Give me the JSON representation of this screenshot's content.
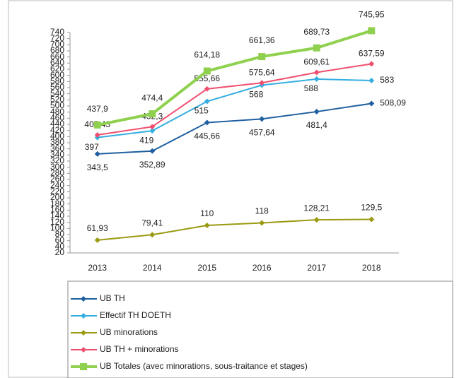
{
  "chart_data": {
    "type": "line",
    "categories": [
      "2013",
      "2014",
      "2015",
      "2016",
      "2017",
      "2018"
    ],
    "ylim": [
      20,
      740
    ],
    "yticks": [
      20,
      40,
      60,
      80,
      100,
      120,
      140,
      160,
      180,
      200,
      220,
      240,
      260,
      280,
      300,
      320,
      340,
      360,
      380,
      400,
      420,
      440,
      460,
      480,
      500,
      520,
      540,
      560,
      580,
      600,
      620,
      640,
      660,
      680,
      700,
      720,
      740
    ],
    "grid": false,
    "legend": "bottom",
    "series": [
      {
        "name": "UB TH",
        "color": "#1f5fa0",
        "marker": "diamond",
        "values": [
          343.5,
          352.89,
          445.66,
          457.64,
          481.4,
          508.09
        ],
        "value_labels": [
          "343,5",
          "352,89",
          "445,66",
          "457,64",
          "481,4",
          "508,09"
        ]
      },
      {
        "name": "Effectif TH DOETH",
        "color": "#35aee0",
        "marker": "diamond",
        "values": [
          397,
          419,
          515,
          568,
          588,
          583
        ],
        "value_labels": [
          "397",
          "419",
          "515",
          "568",
          "588",
          "583"
        ]
      },
      {
        "name": "UB minorations",
        "color": "#9a9a12",
        "marker": "diamond",
        "values": [
          61.93,
          79.41,
          110,
          118,
          128.21,
          129.5
        ],
        "value_labels": [
          "61,93",
          "79,41",
          "110",
          "118",
          "128,21",
          "129,5"
        ]
      },
      {
        "name": "UB TH + minorations",
        "color": "#f05070",
        "marker": "diamond",
        "values": [
          405.43,
          432.3,
          555.66,
          575.64,
          609.61,
          637.59
        ],
        "value_labels": [
          "405,43",
          "432,3",
          "555,66",
          "575,64",
          "609,61",
          "637,59"
        ]
      },
      {
        "name": "UB Totales (avec minorations, sous-traitance et stages)",
        "color": "#8fd14f",
        "marker": "square",
        "values": [
          437.9,
          474.4,
          614.18,
          661.36,
          689.73,
          745.95
        ],
        "value_labels": [
          "437,9",
          "474,4",
          "614,18",
          "661,36",
          "689,73",
          "745,95"
        ]
      }
    ]
  }
}
